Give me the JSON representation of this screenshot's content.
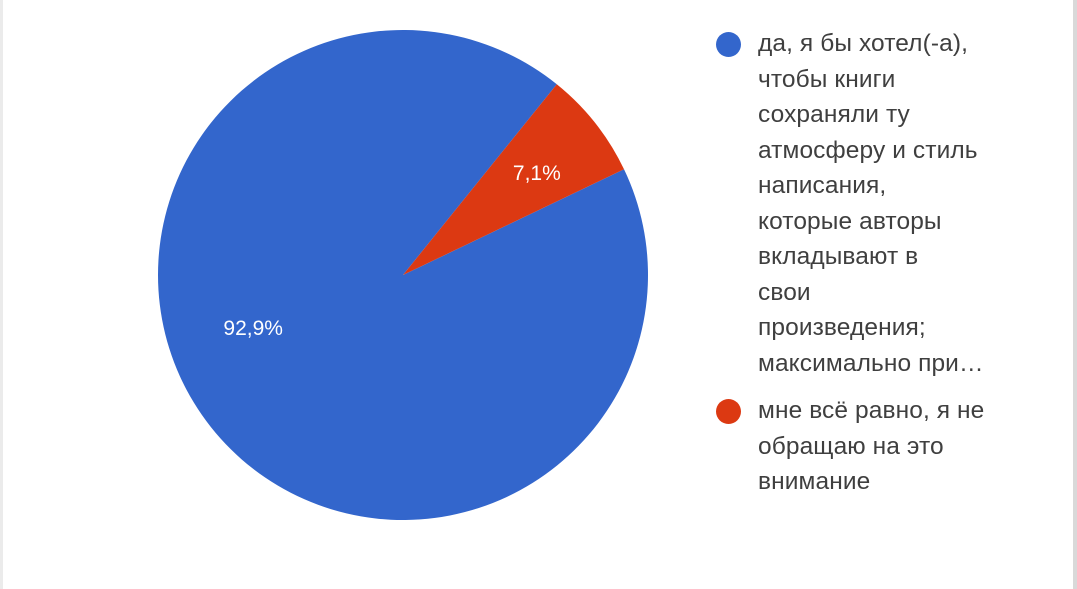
{
  "chart_data": {
    "type": "pie",
    "slices": [
      {
        "label": "да, я бы хотел(-а), чтобы книги сохраняли ту атмосферу и стиль написания, которые авторы вкладывают в свои произведения; максимально при…",
        "label_lines": [
          "да, я бы хотел(-а),",
          "чтобы книги",
          "сохраняли ту",
          "атмосферу и стиль",
          "написания,",
          "которые авторы",
          "вкладывают в",
          "свои",
          "произведения;",
          "максимально при…"
        ],
        "value": 92.9,
        "value_label": "92,9%",
        "color": "#3366cc"
      },
      {
        "label": "мне всё равно, я не обращаю на это внимание",
        "label_lines": [
          "мне всё равно, я не",
          "обращаю на это",
          "внимание"
        ],
        "value": 7.1,
        "value_label": "7,1%",
        "color": "#dc3912"
      }
    ],
    "legend_position": "right"
  }
}
